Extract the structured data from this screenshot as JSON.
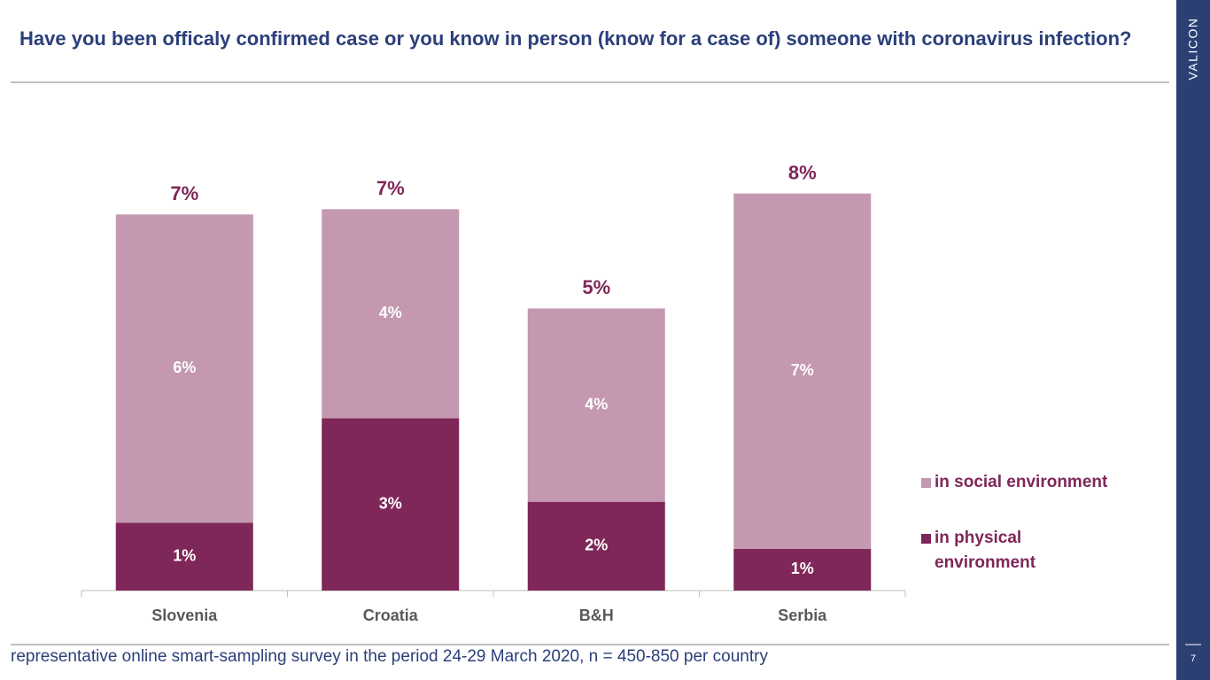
{
  "chart_data": {
    "type": "stacked-bar",
    "title": "Have you been officaly confirmed case or you know in person (know for a case of) someone with coronavirus infection?",
    "categories": [
      "Slovenia",
      "Croatia",
      "B&H",
      "Serbia"
    ],
    "series": [
      {
        "name": "in physical environment",
        "color": "#7f2759",
        "values": [
          1.3,
          3.3,
          1.7,
          0.8
        ],
        "value_labels": [
          "1%",
          "3%",
          "2%",
          "1%"
        ]
      },
      {
        "name": "in social environment",
        "color": "#c398b0",
        "values": [
          5.9,
          4.0,
          3.7,
          6.8
        ],
        "value_labels": [
          "6%",
          "4%",
          "4%",
          "7%"
        ]
      }
    ],
    "total_labels": [
      "7%",
      "7%",
      "5%",
      "8%"
    ],
    "ylim": [
      0,
      8
    ],
    "note": "representative online smart-sampling survey in the period 24-29 March 2020, n = 450-850 per country"
  },
  "brand": "VALICON",
  "page_number": "7"
}
